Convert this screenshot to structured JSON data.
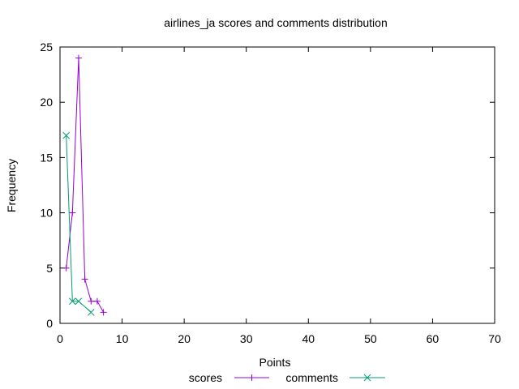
{
  "chart_data": {
    "type": "line",
    "title": "airlines_ja scores and comments distribution",
    "xlabel": "Points",
    "ylabel": "Frequency",
    "xlim": [
      0,
      70
    ],
    "ylim": [
      0,
      25
    ],
    "x_ticks": [
      0,
      10,
      20,
      30,
      40,
      50,
      60,
      70
    ],
    "y_ticks": [
      0,
      5,
      10,
      15,
      20,
      25
    ],
    "grid": false,
    "legend_position": "bottom-center",
    "series": [
      {
        "name": "scores",
        "color": "#9400d3",
        "marker": "plus",
        "points": [
          {
            "x": 1,
            "y": 5
          },
          {
            "x": 2,
            "y": 10
          },
          {
            "x": 3,
            "y": 24
          },
          {
            "x": 4,
            "y": 4
          },
          {
            "x": 5,
            "y": 2
          },
          {
            "x": 6,
            "y": 2
          },
          {
            "x": 7,
            "y": 1
          }
        ]
      },
      {
        "name": "comments",
        "color": "#009e73",
        "marker": "cross",
        "points": [
          {
            "x": 1,
            "y": 17
          },
          {
            "x": 2,
            "y": 2
          },
          {
            "x": 3,
            "y": 2
          },
          {
            "x": 5,
            "y": 1
          }
        ]
      }
    ]
  }
}
